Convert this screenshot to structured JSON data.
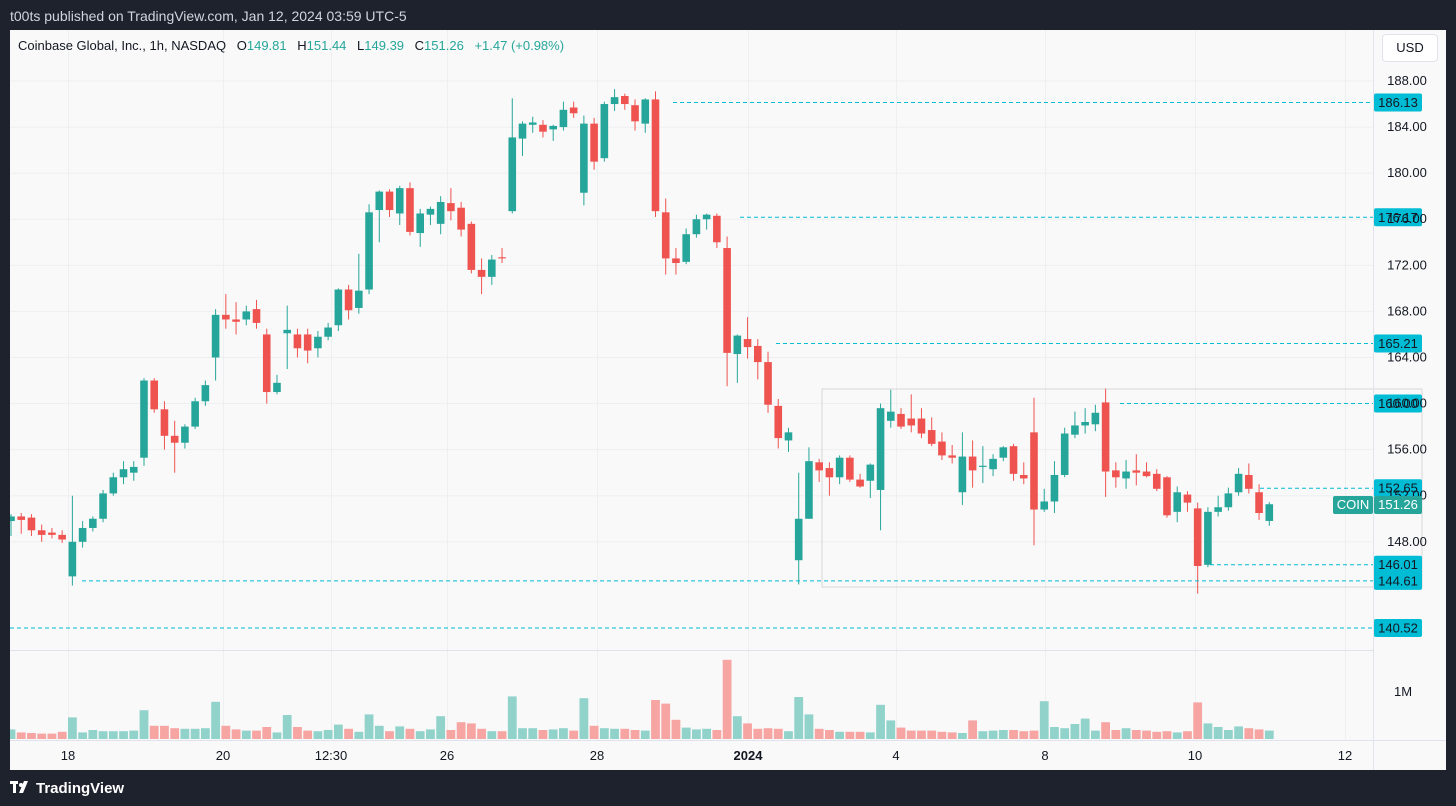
{
  "header": {
    "published_text": "t00ts published on TradingView.com, Jan 12, 2024 03:59 UTC-5"
  },
  "legend": {
    "symbol": "Coinbase Global, Inc., 1h, NASDAQ",
    "open_label": "O",
    "open": "149.81",
    "high_label": "H",
    "high": "151.44",
    "low_label": "L",
    "low": "149.39",
    "close_label": "C",
    "close": "151.26",
    "change": "+1.47 (+0.98%)"
  },
  "currency_button": "USD",
  "footer": {
    "brand": "TradingView"
  },
  "colors": {
    "up": "#26a69a",
    "down": "#ef5350",
    "line": "#00bcd4",
    "up_volume": "#91d2cb",
    "down_volume": "#f6a5a3"
  },
  "chart_data": {
    "type": "candlestick",
    "title": "Coinbase Global, Inc., 1h, NASDAQ",
    "ylim": [
      140,
      189
    ],
    "price_axis_ticks": [
      "188.00",
      "184.00",
      "180.00",
      "176.00",
      "172.00",
      "168.00",
      "164.00",
      "160.00",
      "156.00",
      "152.00",
      "148.00"
    ],
    "time_axis_labels": [
      "18",
      "20",
      "12:30",
      "26",
      "28",
      "2024",
      "4",
      "8",
      "10",
      "12"
    ],
    "horizontal_levels": [
      {
        "price": 186.13,
        "label": "186.13"
      },
      {
        "price": 176.17,
        "label": "176.17"
      },
      {
        "price": 165.21,
        "label": "165.21"
      },
      {
        "price": 160.0,
        "label": "160.00"
      },
      {
        "price": 152.65,
        "label": "152.65"
      },
      {
        "price": 146.01,
        "label": "146.01"
      },
      {
        "price": 144.61,
        "label": "144.61"
      },
      {
        "price": 140.52,
        "label": "140.52"
      }
    ],
    "last_price": {
      "symbol": "COIN",
      "value": "151.26"
    },
    "volume_axis_label": "1M",
    "candles": [
      {
        "o": 149.8,
        "h": 150.4,
        "l": 148.5,
        "c": 150.2
      },
      {
        "o": 150.2,
        "h": 150.5,
        "l": 148.7,
        "c": 149.9
      },
      {
        "o": 150.1,
        "h": 150.4,
        "l": 148.5,
        "c": 149.0
      },
      {
        "o": 149.0,
        "h": 149.5,
        "l": 148.0,
        "c": 148.6
      },
      {
        "o": 148.8,
        "h": 149.2,
        "l": 148.3,
        "c": 148.6
      },
      {
        "o": 148.6,
        "h": 149.0,
        "l": 147.9,
        "c": 148.2
      },
      {
        "o": 145.0,
        "h": 152.0,
        "l": 144.2,
        "c": 148.0
      },
      {
        "o": 148.0,
        "h": 149.8,
        "l": 147.5,
        "c": 149.2
      },
      {
        "o": 149.2,
        "h": 150.2,
        "l": 148.9,
        "c": 150.0
      },
      {
        "o": 150.0,
        "h": 152.5,
        "l": 149.7,
        "c": 152.2
      },
      {
        "o": 152.2,
        "h": 154.0,
        "l": 152.0,
        "c": 153.6
      },
      {
        "o": 153.6,
        "h": 155.0,
        "l": 153.0,
        "c": 154.3
      },
      {
        "o": 154.0,
        "h": 155.0,
        "l": 153.3,
        "c": 154.5
      },
      {
        "o": 155.3,
        "h": 162.2,
        "l": 154.6,
        "c": 162.0
      },
      {
        "o": 162.0,
        "h": 162.2,
        "l": 159.2,
        "c": 159.5
      },
      {
        "o": 159.5,
        "h": 160.2,
        "l": 156.0,
        "c": 157.2
      },
      {
        "o": 157.2,
        "h": 158.5,
        "l": 154.0,
        "c": 156.6
      },
      {
        "o": 156.6,
        "h": 158.2,
        "l": 156.1,
        "c": 158.0
      },
      {
        "o": 158.0,
        "h": 160.5,
        "l": 157.8,
        "c": 160.2
      },
      {
        "o": 160.2,
        "h": 162.0,
        "l": 159.8,
        "c": 161.6
      },
      {
        "o": 164.0,
        "h": 168.2,
        "l": 162.0,
        "c": 167.7
      },
      {
        "o": 167.7,
        "h": 169.5,
        "l": 166.5,
        "c": 167.3
      },
      {
        "o": 167.3,
        "h": 168.8,
        "l": 166.0,
        "c": 167.1
      },
      {
        "o": 167.3,
        "h": 168.5,
        "l": 166.8,
        "c": 168.0
      },
      {
        "o": 168.2,
        "h": 169.0,
        "l": 166.5,
        "c": 167.0
      },
      {
        "o": 166.0,
        "h": 166.5,
        "l": 160.0,
        "c": 161.0
      },
      {
        "o": 161.0,
        "h": 162.5,
        "l": 160.8,
        "c": 161.8
      },
      {
        "o": 166.1,
        "h": 168.5,
        "l": 163.0,
        "c": 166.4
      },
      {
        "o": 166.0,
        "h": 166.5,
        "l": 164.0,
        "c": 164.8
      },
      {
        "o": 166.0,
        "h": 166.5,
        "l": 163.5,
        "c": 164.6
      },
      {
        "o": 164.8,
        "h": 166.3,
        "l": 164.0,
        "c": 165.8
      },
      {
        "o": 165.8,
        "h": 167.0,
        "l": 165.5,
        "c": 166.6
      },
      {
        "o": 166.8,
        "h": 170.0,
        "l": 166.3,
        "c": 169.9
      },
      {
        "o": 169.9,
        "h": 170.3,
        "l": 167.3,
        "c": 168.1
      },
      {
        "o": 168.3,
        "h": 173.0,
        "l": 167.8,
        "c": 169.8
      },
      {
        "o": 169.9,
        "h": 177.3,
        "l": 169.5,
        "c": 176.6
      },
      {
        "o": 176.8,
        "h": 178.5,
        "l": 174.0,
        "c": 178.4
      },
      {
        "o": 178.4,
        "h": 178.6,
        "l": 176.2,
        "c": 176.8
      },
      {
        "o": 176.5,
        "h": 178.9,
        "l": 175.5,
        "c": 178.7
      },
      {
        "o": 178.7,
        "h": 179.2,
        "l": 174.6,
        "c": 174.9
      },
      {
        "o": 174.8,
        "h": 176.9,
        "l": 173.6,
        "c": 176.5
      },
      {
        "o": 176.4,
        "h": 177.1,
        "l": 175.5,
        "c": 176.9
      },
      {
        "o": 175.6,
        "h": 178.0,
        "l": 174.7,
        "c": 177.5
      },
      {
        "o": 177.4,
        "h": 178.7,
        "l": 175.9,
        "c": 176.7
      },
      {
        "o": 177.0,
        "h": 177.5,
        "l": 174.5,
        "c": 175.1
      },
      {
        "o": 175.6,
        "h": 175.8,
        "l": 171.3,
        "c": 171.6
      },
      {
        "o": 171.6,
        "h": 172.6,
        "l": 169.5,
        "c": 171.0
      },
      {
        "o": 171.0,
        "h": 172.9,
        "l": 170.3,
        "c": 172.5
      },
      {
        "o": 172.7,
        "h": 173.5,
        "l": 172.2,
        "c": 172.6
      },
      {
        "o": 176.7,
        "h": 186.5,
        "l": 176.5,
        "c": 183.1
      },
      {
        "o": 183.0,
        "h": 184.5,
        "l": 181.5,
        "c": 184.3
      },
      {
        "o": 184.2,
        "h": 184.9,
        "l": 183.5,
        "c": 184.4
      },
      {
        "o": 184.2,
        "h": 184.6,
        "l": 183.1,
        "c": 183.6
      },
      {
        "o": 183.8,
        "h": 184.2,
        "l": 182.8,
        "c": 184.1
      },
      {
        "o": 184.0,
        "h": 186.2,
        "l": 183.7,
        "c": 185.5
      },
      {
        "o": 185.7,
        "h": 186.2,
        "l": 184.8,
        "c": 185.2
      },
      {
        "o": 178.3,
        "h": 185.0,
        "l": 177.2,
        "c": 184.3
      },
      {
        "o": 184.3,
        "h": 184.8,
        "l": 180.3,
        "c": 181.0
      },
      {
        "o": 181.3,
        "h": 186.2,
        "l": 181.0,
        "c": 186.0
      },
      {
        "o": 186.0,
        "h": 187.3,
        "l": 185.4,
        "c": 186.6
      },
      {
        "o": 186.7,
        "h": 186.9,
        "l": 185.5,
        "c": 186.0
      },
      {
        "o": 185.9,
        "h": 186.4,
        "l": 183.7,
        "c": 184.5
      },
      {
        "o": 184.3,
        "h": 186.5,
        "l": 183.5,
        "c": 186.4
      },
      {
        "o": 186.4,
        "h": 187.1,
        "l": 176.2,
        "c": 176.7
      },
      {
        "o": 176.6,
        "h": 177.8,
        "l": 171.2,
        "c": 172.6
      },
      {
        "o": 172.6,
        "h": 173.5,
        "l": 171.2,
        "c": 172.2
      },
      {
        "o": 172.3,
        "h": 175.2,
        "l": 172.1,
        "c": 174.7
      },
      {
        "o": 174.7,
        "h": 176.4,
        "l": 174.4,
        "c": 176.0
      },
      {
        "o": 176.0,
        "h": 176.5,
        "l": 175.1,
        "c": 176.4
      },
      {
        "o": 176.3,
        "h": 176.5,
        "l": 173.5,
        "c": 174.0
      },
      {
        "o": 173.5,
        "h": 174.5,
        "l": 161.5,
        "c": 164.4
      },
      {
        "o": 164.3,
        "h": 166.0,
        "l": 161.8,
        "c": 165.9
      },
      {
        "o": 165.6,
        "h": 167.5,
        "l": 163.9,
        "c": 164.9
      },
      {
        "o": 165.0,
        "h": 165.6,
        "l": 162.1,
        "c": 163.6
      },
      {
        "o": 163.6,
        "h": 164.5,
        "l": 159.2,
        "c": 159.9
      },
      {
        "o": 159.8,
        "h": 160.4,
        "l": 156.1,
        "c": 157.0
      },
      {
        "o": 156.8,
        "h": 157.9,
        "l": 155.8,
        "c": 157.5
      },
      {
        "o": 146.4,
        "h": 154.0,
        "l": 144.3,
        "c": 150.0
      },
      {
        "o": 150.0,
        "h": 156.2,
        "l": 150.0,
        "c": 155.0
      },
      {
        "o": 154.9,
        "h": 155.2,
        "l": 153.2,
        "c": 154.2
      },
      {
        "o": 154.4,
        "h": 154.9,
        "l": 152.0,
        "c": 153.6
      },
      {
        "o": 153.6,
        "h": 155.5,
        "l": 153.0,
        "c": 155.3
      },
      {
        "o": 155.3,
        "h": 155.5,
        "l": 153.2,
        "c": 153.4
      },
      {
        "o": 153.4,
        "h": 153.9,
        "l": 152.7,
        "c": 152.8
      },
      {
        "o": 153.3,
        "h": 154.8,
        "l": 151.8,
        "c": 154.7
      },
      {
        "o": 152.5,
        "h": 160.0,
        "l": 149.0,
        "c": 159.6
      },
      {
        "o": 158.5,
        "h": 161.2,
        "l": 157.9,
        "c": 159.3
      },
      {
        "o": 159.1,
        "h": 159.6,
        "l": 157.8,
        "c": 158.0
      },
      {
        "o": 158.7,
        "h": 160.8,
        "l": 157.5,
        "c": 158.1
      },
      {
        "o": 158.7,
        "h": 159.6,
        "l": 157.0,
        "c": 157.4
      },
      {
        "o": 157.7,
        "h": 158.8,
        "l": 156.3,
        "c": 156.5
      },
      {
        "o": 156.7,
        "h": 157.5,
        "l": 155.1,
        "c": 155.5
      },
      {
        "o": 155.5,
        "h": 156.4,
        "l": 154.8,
        "c": 155.3
      },
      {
        "o": 152.3,
        "h": 157.5,
        "l": 151.2,
        "c": 155.4
      },
      {
        "o": 155.4,
        "h": 156.8,
        "l": 152.7,
        "c": 154.2
      },
      {
        "o": 154.5,
        "h": 156.3,
        "l": 153.1,
        "c": 154.6
      },
      {
        "o": 154.3,
        "h": 155.6,
        "l": 153.7,
        "c": 155.2
      },
      {
        "o": 155.3,
        "h": 156.3,
        "l": 155.0,
        "c": 156.2
      },
      {
        "o": 156.3,
        "h": 156.5,
        "l": 153.3,
        "c": 153.9
      },
      {
        "o": 153.8,
        "h": 154.9,
        "l": 153.0,
        "c": 153.5
      },
      {
        "o": 157.5,
        "h": 160.5,
        "l": 147.7,
        "c": 150.8
      },
      {
        "o": 150.8,
        "h": 152.6,
        "l": 150.6,
        "c": 151.5
      },
      {
        "o": 151.5,
        "h": 155.0,
        "l": 150.5,
        "c": 153.8
      },
      {
        "o": 153.8,
        "h": 157.9,
        "l": 153.6,
        "c": 157.4
      },
      {
        "o": 157.3,
        "h": 159.3,
        "l": 157.0,
        "c": 158.1
      },
      {
        "o": 158.1,
        "h": 159.6,
        "l": 157.4,
        "c": 158.4
      },
      {
        "o": 158.2,
        "h": 159.9,
        "l": 157.6,
        "c": 159.2
      },
      {
        "o": 160.1,
        "h": 161.3,
        "l": 151.9,
        "c": 154.1
      },
      {
        "o": 154.2,
        "h": 154.9,
        "l": 152.7,
        "c": 153.6
      },
      {
        "o": 153.5,
        "h": 155.1,
        "l": 152.6,
        "c": 154.1
      },
      {
        "o": 154.2,
        "h": 155.6,
        "l": 152.9,
        "c": 154.0
      },
      {
        "o": 154.1,
        "h": 154.9,
        "l": 153.6,
        "c": 153.7
      },
      {
        "o": 153.9,
        "h": 154.3,
        "l": 152.4,
        "c": 152.6
      },
      {
        "o": 153.6,
        "h": 153.7,
        "l": 150.1,
        "c": 150.3
      },
      {
        "o": 150.6,
        "h": 152.8,
        "l": 149.7,
        "c": 152.3
      },
      {
        "o": 152.1,
        "h": 152.4,
        "l": 150.6,
        "c": 151.4
      },
      {
        "o": 150.9,
        "h": 151.4,
        "l": 143.5,
        "c": 145.9
      },
      {
        "o": 146.0,
        "h": 151.0,
        "l": 145.8,
        "c": 150.6
      },
      {
        "o": 150.6,
        "h": 152.0,
        "l": 150.2,
        "c": 151.0
      },
      {
        "o": 151.0,
        "h": 152.7,
        "l": 150.7,
        "c": 152.2
      },
      {
        "o": 152.3,
        "h": 154.4,
        "l": 152.0,
        "c": 153.9
      },
      {
        "o": 153.8,
        "h": 154.8,
        "l": 152.2,
        "c": 152.6
      },
      {
        "o": 152.3,
        "h": 153.0,
        "l": 149.9,
        "c": 150.5
      },
      {
        "o": 149.81,
        "h": 151.44,
        "l": 149.39,
        "c": 151.26
      }
    ],
    "volume": [
      0.16,
      0.11,
      0.1,
      0.09,
      0.09,
      0.12,
      0.36,
      0.11,
      0.15,
      0.13,
      0.13,
      0.13,
      0.14,
      0.48,
      0.22,
      0.22,
      0.18,
      0.17,
      0.17,
      0.18,
      0.62,
      0.22,
      0.16,
      0.14,
      0.14,
      0.2,
      0.11,
      0.4,
      0.2,
      0.14,
      0.13,
      0.15,
      0.24,
      0.17,
      0.12,
      0.41,
      0.22,
      0.13,
      0.21,
      0.17,
      0.13,
      0.16,
      0.38,
      0.15,
      0.28,
      0.26,
      0.17,
      0.13,
      0.13,
      0.71,
      0.18,
      0.18,
      0.15,
      0.16,
      0.18,
      0.14,
      0.68,
      0.22,
      0.18,
      0.17,
      0.17,
      0.15,
      0.14,
      0.65,
      0.59,
      0.32,
      0.19,
      0.16,
      0.17,
      0.15,
      1.32,
      0.38,
      0.26,
      0.17,
      0.18,
      0.17,
      0.13,
      0.7,
      0.41,
      0.17,
      0.15,
      0.12,
      0.12,
      0.12,
      0.11,
      0.57,
      0.31,
      0.19,
      0.14,
      0.14,
      0.14,
      0.12,
      0.11,
      0.1,
      0.31,
      0.13,
      0.14,
      0.15,
      0.15,
      0.13,
      0.14,
      0.63,
      0.2,
      0.18,
      0.25,
      0.34,
      0.14,
      0.28,
      0.15,
      0.18,
      0.15,
      0.14,
      0.12,
      0.13,
      0.11,
      0.13,
      0.61,
      0.26,
      0.2,
      0.15,
      0.21,
      0.18,
      0.16,
      0.14
    ]
  }
}
